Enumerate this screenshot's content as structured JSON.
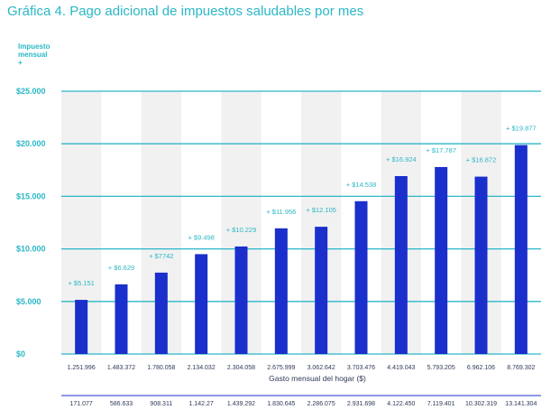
{
  "title": "Gráfica 4. Pago adicional de impuestos saludables por mes",
  "chart_data": {
    "type": "bar",
    "ylabel": "Impuesto mensual",
    "ylabel_marker": "+",
    "xlabel": "Gasto mensual del hogar ($)",
    "ylim": [
      0,
      25000
    ],
    "yticks": [
      {
        "value": 0,
        "label": "$0"
      },
      {
        "value": 5000,
        "label": "$5.000"
      },
      {
        "value": 10000,
        "label": "$10.000"
      },
      {
        "value": 15000,
        "label": "$15.000"
      },
      {
        "value": 20000,
        "label": "$20.000"
      },
      {
        "value": 25000,
        "label": "$25.000"
      }
    ],
    "grid": true,
    "colors": {
      "bar": "#1a2fcc",
      "grid": "#2bb7c6",
      "band": "#f1f1f1",
      "text": "#2bb7c6"
    },
    "categories": [
      "1.251.996",
      "1.483.372",
      "1.780.058",
      "2.134.032",
      "2.304.058",
      "2.675.999",
      "3.062.642",
      "3.703.476",
      "4.419.043",
      "5.793.205",
      "6.962.106",
      "8.769.302"
    ],
    "secondary_categories": [
      "171.077",
      "586.633",
      "908.311",
      "1.142.27",
      "1.439.292",
      "1.830.645",
      "2.286.075",
      "2.931.698",
      "4.122.450",
      "7.119.401",
      "10.302.319",
      "13.141.304"
    ],
    "values": [
      5151,
      6629,
      7742,
      9498,
      10229,
      11956,
      12105,
      14538,
      16924,
      17787,
      16872,
      19877
    ],
    "data_labels": [
      "+ $5.151",
      "+ $6.629",
      "+ $7742",
      "+ $9.498",
      "+ $10.229",
      "+ $11.956",
      "+ $12.105",
      "+ $14.538",
      "+ $16.924",
      "+ $17.787",
      "+ $16.872",
      "+ $19.877"
    ]
  }
}
